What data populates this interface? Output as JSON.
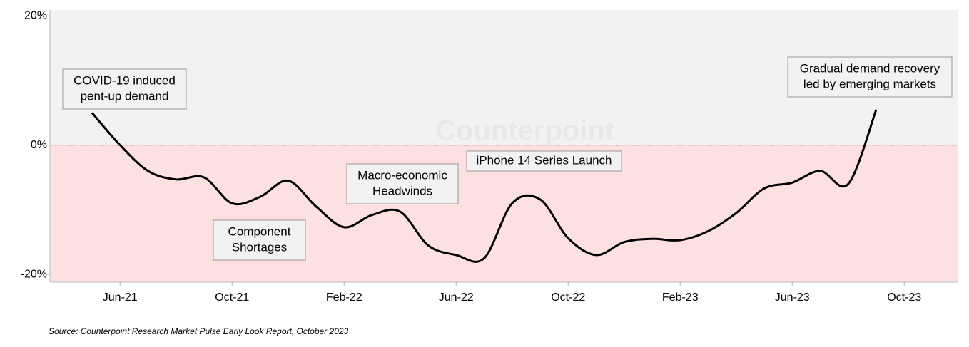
{
  "chart_data": {
    "type": "line",
    "categories": [
      null,
      "Jun-21",
      null,
      null,
      null,
      "Oct-21",
      null,
      null,
      null,
      "Feb-22",
      null,
      null,
      null,
      "Jun-22",
      null,
      null,
      null,
      "Oct-22",
      null,
      null,
      null,
      "Feb-23",
      null,
      null,
      null,
      "Jun-23",
      null,
      null,
      null,
      "Oct-23"
    ],
    "series": [
      {
        "color": "#000000",
        "values": [
          5,
          0,
          -4,
          -5.3,
          -5,
          -9,
          -8,
          -5.5,
          -9.5,
          -12.7,
          -10.8,
          -10.3,
          -15.5,
          -17,
          -17.5,
          -9,
          -8.4,
          -14.4,
          -17,
          -15,
          -14.5,
          -14.7,
          -13.3,
          -10.5,
          -6.7,
          -5.8,
          -4,
          -6,
          5.5,
          null
        ]
      }
    ],
    "ylim": [
      -21.2,
      20.9
    ],
    "yticks": [
      {
        "value": 20,
        "label": "20%"
      },
      {
        "value": 0,
        "label": "0%"
      },
      {
        "value": -20,
        "label": "-20%"
      }
    ],
    "annotations": [
      {
        "lines": [
          "COVID-19 induced",
          "pent-up demand"
        ]
      },
      {
        "lines": [
          "Component",
          "Shortages"
        ]
      },
      {
        "lines": [
          "Macro-economic",
          "Headwinds"
        ]
      },
      {
        "lines": [
          "iPhone 14 Series Launch"
        ]
      },
      {
        "lines": [
          "Gradual demand recovery",
          "led by emerging markets"
        ]
      }
    ],
    "watermark": "Counterpoint",
    "source": "Source: Counterpoint Research Market Pulse Early Look Report, October 2023"
  }
}
